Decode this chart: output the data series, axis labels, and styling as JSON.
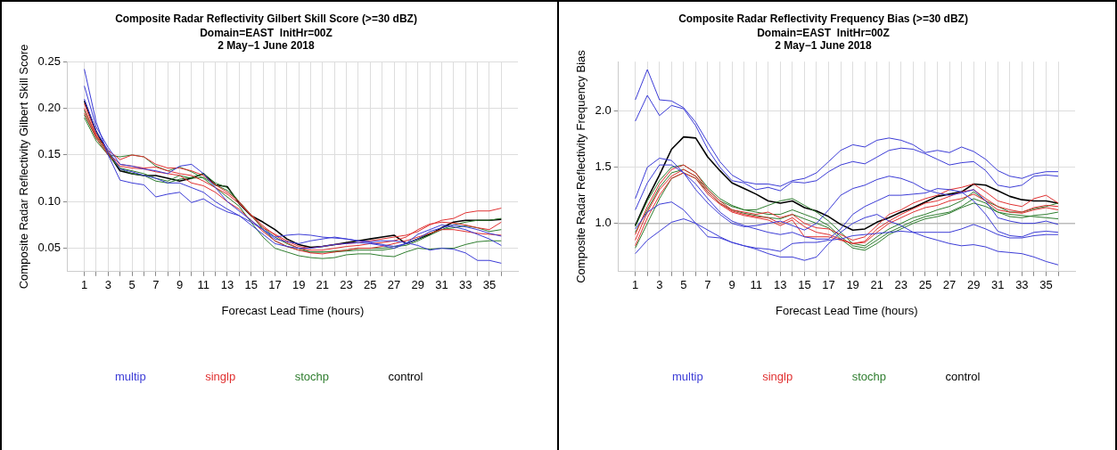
{
  "chart_data": [
    {
      "type": "line",
      "title": "Composite Radar Reflectivity Gilbert Skill Score (>=30 dBZ)",
      "subtitle": "Domain=EAST  InitHr=00Z\n2 May−1 June 2018",
      "xlabel": "Forecast Lead Time (hours)",
      "ylabel": "Composite Radar Reflectivity Gilbert Skill Score",
      "x": [
        1,
        2,
        3,
        4,
        5,
        6,
        7,
        8,
        9,
        10,
        11,
        12,
        13,
        14,
        15,
        16,
        17,
        18,
        19,
        20,
        21,
        22,
        23,
        24,
        25,
        26,
        27,
        28,
        29,
        30,
        31,
        32,
        33,
        34,
        35,
        36
      ],
      "xlim": [
        -0.4,
        37.4
      ],
      "xticks": [
        1,
        {
          "value": 2,
          "label": null
        },
        3,
        {
          "value": 4,
          "label": null
        },
        5,
        {
          "value": 6,
          "label": null
        },
        7,
        {
          "value": 8,
          "label": null
        },
        9,
        {
          "value": 10,
          "label": null
        },
        11,
        {
          "value": 12,
          "label": null
        },
        13,
        {
          "value": 14,
          "label": null
        },
        15,
        {
          "value": 16,
          "label": null
        },
        17,
        {
          "value": 18,
          "label": null
        },
        19,
        {
          "value": 20,
          "label": null
        },
        21,
        {
          "value": 22,
          "label": null
        },
        23,
        {
          "value": 24,
          "label": null
        },
        25,
        {
          "value": 26,
          "label": null
        },
        27,
        {
          "value": 28,
          "label": null
        },
        29,
        {
          "value": 30,
          "label": null
        },
        31,
        {
          "value": 32,
          "label": null
        },
        33,
        {
          "value": 34,
          "label": null
        },
        35,
        {
          "value": 36,
          "label": null
        }
      ],
      "ylim": [
        0.025,
        0.25
      ],
      "yticks": [
        {
          "value": 0.05,
          "label": "0.05"
        },
        {
          "value": 0.1,
          "label": "0.10"
        },
        {
          "value": 0.15,
          "label": "0.15"
        },
        {
          "value": 0.2,
          "label": "0.20"
        },
        {
          "value": 0.25,
          "label": "0.25"
        }
      ],
      "grid": true,
      "legend": "bottom",
      "marker": "none",
      "line_style": "solid",
      "series": [
        {
          "name": "multip",
          "color": "#3b3bd6",
          "values": [
            0.242,
            0.185,
            0.15,
            0.123,
            0.12,
            0.118,
            0.105,
            0.108,
            0.11,
            0.099,
            0.103,
            0.095,
            0.089,
            0.085,
            0.078,
            0.07,
            0.062,
            0.064,
            0.065,
            0.064,
            0.062,
            0.061,
            0.06,
            0.058,
            0.057,
            0.058,
            0.058,
            0.056,
            0.053,
            0.048,
            0.05,
            0.049,
            0.045,
            0.037,
            0.037,
            0.034
          ]
        },
        {
          "color": "#3b3bd6",
          "values": [
            0.224,
            0.18,
            0.158,
            0.14,
            0.138,
            0.135,
            0.133,
            0.13,
            0.138,
            0.14,
            0.13,
            0.115,
            0.1,
            0.09,
            0.08,
            0.07,
            0.06,
            0.057,
            0.055,
            0.058,
            0.06,
            0.062,
            0.06,
            0.058,
            0.056,
            0.054,
            0.052,
            0.055,
            0.065,
            0.07,
            0.075,
            0.073,
            0.07,
            0.065,
            0.06,
            0.053
          ]
        },
        {
          "color": "#3b3bd6",
          "values": [
            0.21,
            0.175,
            0.155,
            0.135,
            0.132,
            0.128,
            0.125,
            0.12,
            0.12,
            0.115,
            0.11,
            0.1,
            0.092,
            0.085,
            0.075,
            0.065,
            0.055,
            0.052,
            0.05,
            0.05,
            0.052,
            0.054,
            0.055,
            0.056,
            0.055,
            0.053,
            0.05,
            0.055,
            0.06,
            0.068,
            0.072,
            0.075,
            0.073,
            0.07,
            0.066,
            0.063
          ]
        },
        {
          "name": "singlp",
          "color": "#e03030",
          "values": [
            0.2,
            0.17,
            0.155,
            0.145,
            0.15,
            0.148,
            0.14,
            0.136,
            0.136,
            0.133,
            0.128,
            0.118,
            0.11,
            0.1,
            0.085,
            0.072,
            0.065,
            0.058,
            0.052,
            0.05,
            0.052,
            0.054,
            0.055,
            0.056,
            0.058,
            0.06,
            0.062,
            0.064,
            0.068,
            0.075,
            0.08,
            0.082,
            0.088,
            0.09,
            0.09,
            0.093
          ]
        },
        {
          "color": "#e03030",
          "values": [
            0.195,
            0.168,
            0.15,
            0.138,
            0.136,
            0.135,
            0.132,
            0.13,
            0.128,
            0.12,
            0.117,
            0.11,
            0.1,
            0.092,
            0.08,
            0.068,
            0.058,
            0.052,
            0.048,
            0.045,
            0.044,
            0.046,
            0.048,
            0.05,
            0.05,
            0.052,
            0.055,
            0.058,
            0.062,
            0.066,
            0.07,
            0.07,
            0.068,
            0.066,
            0.065,
            0.064
          ]
        },
        {
          "color": "#e03030",
          "values": [
            0.205,
            0.172,
            0.152,
            0.14,
            0.138,
            0.136,
            0.137,
            0.133,
            0.13,
            0.128,
            0.122,
            0.115,
            0.108,
            0.098,
            0.086,
            0.074,
            0.064,
            0.056,
            0.05,
            0.048,
            0.048,
            0.05,
            0.052,
            0.053,
            0.055,
            0.056,
            0.058,
            0.062,
            0.07,
            0.076,
            0.078,
            0.077,
            0.075,
            0.072,
            0.07,
            0.078
          ]
        },
        {
          "name": "stochp",
          "color": "#2e7d2e",
          "values": [
            0.19,
            0.165,
            0.15,
            0.148,
            0.15,
            0.148,
            0.138,
            0.133,
            0.137,
            0.132,
            0.125,
            0.115,
            0.105,
            0.095,
            0.078,
            0.062,
            0.05,
            0.046,
            0.042,
            0.04,
            0.039,
            0.04,
            0.043,
            0.044,
            0.044,
            0.042,
            0.041,
            0.046,
            0.05,
            0.049,
            0.05,
            0.05,
            0.054,
            0.057,
            0.058,
            0.058
          ]
        },
        {
          "color": "#2e7d2e",
          "values": [
            0.198,
            0.17,
            0.152,
            0.136,
            0.133,
            0.13,
            0.125,
            0.122,
            0.128,
            0.125,
            0.126,
            0.118,
            0.112,
            0.1,
            0.086,
            0.07,
            0.058,
            0.052,
            0.048,
            0.046,
            0.046,
            0.046,
            0.047,
            0.048,
            0.048,
            0.048,
            0.05,
            0.055,
            0.06,
            0.066,
            0.07,
            0.072,
            0.074,
            0.072,
            0.068,
            0.07
          ]
        },
        {
          "color": "#2e7d2e",
          "values": [
            0.193,
            0.168,
            0.15,
            0.135,
            0.13,
            0.128,
            0.122,
            0.12,
            0.124,
            0.126,
            0.13,
            0.12,
            0.115,
            0.1,
            0.085,
            0.072,
            0.062,
            0.055,
            0.05,
            0.046,
            0.046,
            0.047,
            0.048,
            0.05,
            0.05,
            0.05,
            0.052,
            0.053,
            0.058,
            0.064,
            0.07,
            0.075,
            0.078,
            0.08,
            0.08,
            0.082
          ]
        },
        {
          "name": "control",
          "color": "#000000",
          "values": [
            0.208,
            0.175,
            0.152,
            0.133,
            0.13,
            0.128,
            0.128,
            0.125,
            0.122,
            0.125,
            0.13,
            0.118,
            0.116,
            0.098,
            0.085,
            0.078,
            0.07,
            0.06,
            0.054,
            0.051,
            0.052,
            0.054,
            0.056,
            0.058,
            0.06,
            0.062,
            0.064,
            0.055,
            0.06,
            0.065,
            0.072,
            0.078,
            0.08,
            0.08,
            0.08,
            0.081
          ]
        }
      ]
    },
    {
      "type": "line",
      "title": "Composite Radar Reflectivity Frequency Bias (>=30 dBZ)",
      "subtitle": "Domain=EAST  InitHr=00Z\n2 May−1 June 2018",
      "xlabel": "Forecast Lead Time (hours)",
      "ylabel": "Composite Radar Reflectivity Frequency Bias",
      "x": [
        1,
        2,
        3,
        4,
        5,
        6,
        7,
        8,
        9,
        10,
        11,
        12,
        13,
        14,
        15,
        16,
        17,
        18,
        19,
        20,
        21,
        22,
        23,
        24,
        25,
        26,
        27,
        28,
        29,
        30,
        31,
        32,
        33,
        34,
        35,
        36
      ],
      "xlim": [
        -0.4,
        37.4
      ],
      "xticks": [
        1,
        {
          "value": 2,
          "label": null
        },
        3,
        {
          "value": 4,
          "label": null
        },
        5,
        {
          "value": 6,
          "label": null
        },
        7,
        {
          "value": 8,
          "label": null
        },
        9,
        {
          "value": 10,
          "label": null
        },
        11,
        {
          "value": 12,
          "label": null
        },
        13,
        {
          "value": 14,
          "label": null
        },
        15,
        {
          "value": 16,
          "label": null
        },
        17,
        {
          "value": 18,
          "label": null
        },
        19,
        {
          "value": 20,
          "label": null
        },
        21,
        {
          "value": 22,
          "label": null
        },
        23,
        {
          "value": 24,
          "label": null
        },
        25,
        {
          "value": 26,
          "label": null
        },
        27,
        {
          "value": 28,
          "label": null
        },
        29,
        {
          "value": 30,
          "label": null
        },
        31,
        {
          "value": 32,
          "label": null
        },
        33,
        {
          "value": 34,
          "label": null
        },
        35,
        {
          "value": 36,
          "label": null
        }
      ],
      "ylim": [
        0.57,
        2.44
      ],
      "yticks": [
        {
          "value": 1,
          "label": "1.0"
        },
        {
          "value": 1.5,
          "label": "1.5"
        },
        {
          "value": 2,
          "label": "2.0"
        }
      ],
      "grid": true,
      "legend": "bottom",
      "marker": "none",
      "line_style": "solid",
      "ref_lines": [
        {
          "axis": "y",
          "value": 1,
          "color": "#bbbbbb"
        }
      ],
      "series": [
        {
          "name": "multip",
          "color": "#3b3bd6",
          "values": [
            2.1,
            2.37,
            2.1,
            2.09,
            2.03,
            1.9,
            1.72,
            1.55,
            1.43,
            1.37,
            1.35,
            1.35,
            1.33,
            1.38,
            1.4,
            1.45,
            1.55,
            1.65,
            1.7,
            1.68,
            1.74,
            1.76,
            1.74,
            1.7,
            1.63,
            1.65,
            1.63,
            1.68,
            1.64,
            1.57,
            1.47,
            1.42,
            1.4,
            1.44,
            1.46,
            1.46
          ]
        },
        {
          "color": "#3b3bd6",
          "values": [
            1.91,
            2.14,
            1.96,
            2.05,
            2.02,
            1.87,
            1.66,
            1.5,
            1.38,
            1.36,
            1.3,
            1.32,
            1.29,
            1.37,
            1.36,
            1.38,
            1.46,
            1.52,
            1.55,
            1.53,
            1.59,
            1.65,
            1.67,
            1.66,
            1.62,
            1.57,
            1.52,
            1.54,
            1.55,
            1.47,
            1.34,
            1.32,
            1.34,
            1.42,
            1.43,
            1.42
          ]
        },
        {
          "color": "#3b3bd6",
          "values": [
            1.22,
            1.5,
            1.58,
            1.56,
            1.45,
            1.3,
            1.18,
            1.08,
            1.0,
            0.97,
            0.98,
            1.0,
            1.02,
            0.98,
            0.94,
            1.0,
            1.12,
            1.25,
            1.31,
            1.34,
            1.39,
            1.42,
            1.4,
            1.36,
            1.3,
            1.27,
            1.25,
            1.27,
            1.3,
            1.2,
            1.05,
            1.02,
            1.0,
            1.0,
            1.02,
            0.99
          ]
        },
        {
          "color": "#3b3bd6",
          "values": [
            1.12,
            1.36,
            1.52,
            1.52,
            1.45,
            1.35,
            1.22,
            1.1,
            1.02,
            0.98,
            0.95,
            0.92,
            0.9,
            0.92,
            0.88,
            0.86,
            0.86,
            0.95,
            1.08,
            1.15,
            1.2,
            1.25,
            1.25,
            1.26,
            1.27,
            1.31,
            1.3,
            1.28,
            1.2,
            1.08,
            0.93,
            0.89,
            0.88,
            0.92,
            0.93,
            0.92
          ]
        },
        {
          "color": "#3b3bd6",
          "values": [
            0.73,
            0.85,
            0.93,
            1.01,
            1.04,
            1.0,
            0.94,
            0.88,
            0.83,
            0.8,
            0.77,
            0.73,
            0.7,
            0.7,
            0.67,
            0.7,
            0.82,
            0.92,
            1.0,
            1.05,
            1.08,
            1.02,
            0.98,
            0.92,
            0.88,
            0.85,
            0.82,
            0.8,
            0.81,
            0.79,
            0.75,
            0.74,
            0.73,
            0.7,
            0.66,
            0.63
          ]
        },
        {
          "color": "#3b3bd6",
          "values": [
            0.95,
            1.1,
            1.17,
            1.19,
            1.12,
            1.0,
            0.88,
            0.87,
            0.83,
            0.8,
            0.78,
            0.77,
            0.75,
            0.82,
            0.83,
            0.83,
            0.85,
            0.86,
            0.89,
            0.9,
            0.91,
            0.92,
            0.93,
            0.92,
            0.92,
            0.92,
            0.92,
            0.95,
            0.99,
            0.95,
            0.9,
            0.87,
            0.87,
            0.89,
            0.9,
            0.9
          ]
        },
        {
          "name": "singlp",
          "color": "#e03030",
          "values": [
            0.9,
            1.15,
            1.35,
            1.48,
            1.52,
            1.45,
            1.3,
            1.2,
            1.12,
            1.1,
            1.08,
            1.1,
            1.05,
            1.08,
            1.0,
            0.96,
            0.95,
            0.9,
            0.85,
            0.88,
            0.98,
            1.08,
            1.12,
            1.18,
            1.22,
            1.25,
            1.3,
            1.32,
            1.35,
            1.28,
            1.2,
            1.17,
            1.15,
            1.22,
            1.25,
            1.18
          ]
        },
        {
          "color": "#e03030",
          "values": [
            0.85,
            1.1,
            1.3,
            1.42,
            1.48,
            1.42,
            1.28,
            1.18,
            1.11,
            1.08,
            1.06,
            1.05,
            1.0,
            1.05,
            0.97,
            0.92,
            0.9,
            0.86,
            0.82,
            0.84,
            0.95,
            1.02,
            1.08,
            1.13,
            1.18,
            1.2,
            1.24,
            1.28,
            1.3,
            1.22,
            1.15,
            1.12,
            1.1,
            1.14,
            1.16,
            1.15
          ]
        },
        {
          "color": "#e03030",
          "values": [
            0.8,
            1.05,
            1.25,
            1.4,
            1.45,
            1.4,
            1.26,
            1.17,
            1.1,
            1.07,
            1.05,
            1.03,
            0.98,
            1.03,
            0.88,
            0.88,
            0.88,
            0.85,
            0.82,
            0.83,
            0.92,
            1.0,
            1.05,
            1.1,
            1.14,
            1.16,
            1.2,
            1.22,
            1.26,
            1.2,
            1.12,
            1.1,
            1.09,
            1.12,
            1.14,
            1.12
          ]
        },
        {
          "name": "stochp",
          "color": "#2e7d2e",
          "values": [
            0.97,
            1.2,
            1.38,
            1.5,
            1.52,
            1.45,
            1.32,
            1.22,
            1.16,
            1.12,
            1.12,
            1.16,
            1.2,
            1.22,
            1.16,
            1.1,
            1.02,
            0.92,
            0.82,
            0.8,
            0.88,
            0.95,
            1.0,
            1.05,
            1.08,
            1.12,
            1.15,
            1.2,
            1.28,
            1.2,
            1.15,
            1.1,
            1.1,
            1.13,
            1.15,
            1.18
          ]
        },
        {
          "color": "#2e7d2e",
          "values": [
            0.92,
            1.12,
            1.32,
            1.45,
            1.48,
            1.42,
            1.3,
            1.2,
            1.15,
            1.12,
            1.1,
            1.08,
            1.08,
            1.12,
            1.08,
            1.04,
            0.98,
            0.88,
            0.8,
            0.78,
            0.85,
            0.92,
            0.97,
            1.02,
            1.06,
            1.08,
            1.1,
            1.15,
            1.22,
            1.18,
            1.1,
            1.06,
            1.05,
            1.07,
            1.08,
            1.1
          ]
        },
        {
          "color": "#2e7d2e",
          "values": [
            0.78,
            1.0,
            1.22,
            1.4,
            1.45,
            1.4,
            1.28,
            1.18,
            1.12,
            1.09,
            1.07,
            1.05,
            1.04,
            1.08,
            1.04,
            1.0,
            0.96,
            0.86,
            0.78,
            0.76,
            0.82,
            0.9,
            0.95,
            1.0,
            1.04,
            1.06,
            1.09,
            1.14,
            1.18,
            1.15,
            1.1,
            1.08,
            1.07,
            1.06,
            1.05,
            1.04
          ]
        },
        {
          "name": "control",
          "color": "#000000",
          "values": [
            0.98,
            1.22,
            1.43,
            1.66,
            1.77,
            1.76,
            1.59,
            1.47,
            1.36,
            1.31,
            1.26,
            1.2,
            1.18,
            1.2,
            1.14,
            1.11,
            1.06,
            0.99,
            0.94,
            0.95,
            1.01,
            1.05,
            1.1,
            1.14,
            1.19,
            1.24,
            1.26,
            1.28,
            1.35,
            1.34,
            1.29,
            1.24,
            1.21,
            1.2,
            1.2,
            1.18
          ]
        }
      ]
    }
  ]
}
